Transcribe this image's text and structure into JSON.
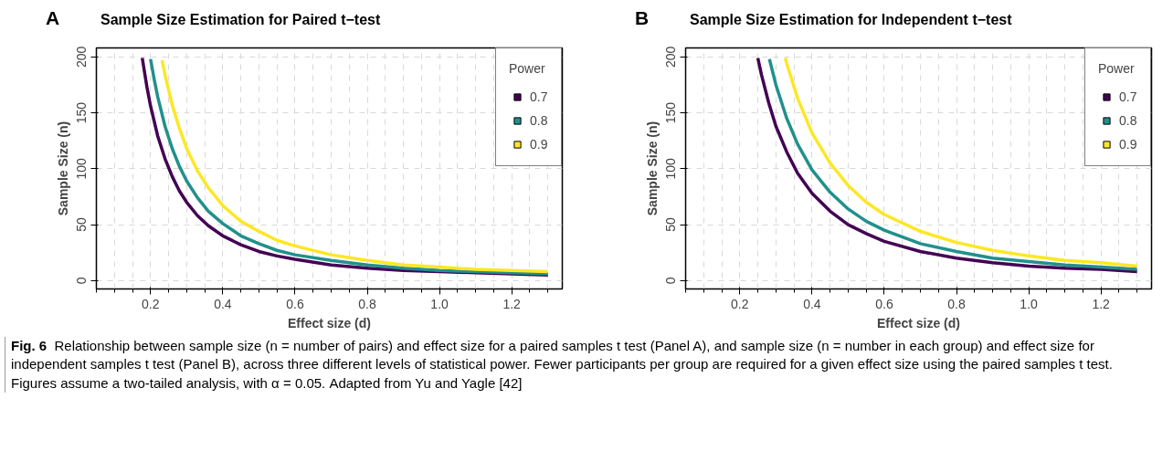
{
  "chart_data": [
    {
      "type": "line",
      "title": "Sample Size Estimation for Paired t−test",
      "xlabel": "Effect size (d)",
      "ylabel": "Sample Size (n)",
      "legend_title": "Power",
      "legend": "top right",
      "grid": true,
      "line_style": "solid",
      "marker": "none",
      "xlim": [
        0.05,
        1.34
      ],
      "ylim": [
        -7.5,
        208
      ],
      "xticks": [
        0.2,
        0.4,
        0.6,
        0.8,
        {
          "value": 1.0,
          "label": "1.0"
        },
        1.2
      ],
      "yticks": [
        0,
        50,
        100,
        150,
        200
      ],
      "annotations": [
        "A",
        "Fig. 6",
        "Relationship between sample size (n = number of pairs) and effect size for a paired samples t test (Panel A), and sample size (n = number in each group) and effect size for independent samples t test (Panel B), across three different levels of statistical power. Fewer participants per group are required for a given effect size using the paired samples t test. Figures assume a two-tailed analysis, with α = 0.05. Adapted from Yu and Yagle [42]"
      ],
      "series": [
        {
          "name": "0.7",
          "color": "#440154",
          "x": [
            0.177,
            0.19,
            0.2,
            0.22,
            0.24,
            0.26,
            0.28,
            0.3,
            0.33,
            0.36,
            0.4,
            0.45,
            0.5,
            0.55,
            0.6,
            0.7,
            0.8,
            0.9,
            1.0,
            1.1,
            1.2,
            1.3
          ],
          "values": [
            199,
            173,
            156,
            129,
            109,
            93,
            80,
            70,
            58,
            49,
            40,
            32,
            26,
            22,
            19,
            14,
            11,
            9,
            8,
            7,
            6,
            5
          ]
        },
        {
          "name": "0.8",
          "color": "#21908c",
          "x": [
            0.2,
            0.21,
            0.22,
            0.24,
            0.26,
            0.28,
            0.3,
            0.33,
            0.36,
            0.4,
            0.45,
            0.5,
            0.55,
            0.6,
            0.7,
            0.8,
            0.9,
            1.0,
            1.1,
            1.2,
            1.3
          ],
          "values": [
            198,
            180,
            164,
            138,
            118,
            102,
            89,
            74,
            62,
            51,
            40,
            33,
            27,
            23,
            18,
            14,
            11,
            9,
            8,
            7,
            6
          ]
        },
        {
          "name": "0.9",
          "color": "#fde725",
          "x": [
            0.232,
            0.24,
            0.26,
            0.28,
            0.3,
            0.33,
            0.36,
            0.4,
            0.45,
            0.5,
            0.55,
            0.6,
            0.7,
            0.8,
            0.9,
            1.0,
            1.1,
            1.2,
            1.3
          ],
          "values": [
            197,
            184,
            157,
            136,
            118,
            98,
            83,
            67,
            53,
            44,
            36,
            31,
            23,
            18,
            14,
            12,
            10,
            9,
            8
          ]
        }
      ]
    },
    {
      "type": "line",
      "title": "Sample Size Estimation for Independent t−test",
      "xlabel": "Effect size (d)",
      "ylabel": "Sample Size (n)",
      "legend_title": "Power",
      "legend": "top right",
      "grid": true,
      "line_style": "solid",
      "marker": "none",
      "xlim": [
        0.05,
        1.34
      ],
      "ylim": [
        -7.5,
        208
      ],
      "xticks": [
        0.2,
        0.4,
        0.6,
        0.8,
        {
          "value": 1.0,
          "label": "1.0"
        },
        1.2
      ],
      "yticks": [
        0,
        50,
        100,
        150,
        200
      ],
      "annotations": [
        "B"
      ],
      "series": [
        {
          "name": "0.7",
          "color": "#440154",
          "x": [
            0.25,
            0.26,
            0.28,
            0.3,
            0.33,
            0.36,
            0.4,
            0.45,
            0.5,
            0.55,
            0.6,
            0.7,
            0.8,
            0.9,
            1.0,
            1.1,
            1.2,
            1.3
          ],
          "values": [
            199,
            184,
            159,
            138,
            115,
            96,
            78,
            62,
            50,
            42,
            35,
            26,
            20,
            16,
            13,
            11,
            10,
            8
          ]
        },
        {
          "name": "0.8",
          "color": "#21908c",
          "x": [
            0.282,
            0.3,
            0.33,
            0.36,
            0.4,
            0.45,
            0.5,
            0.55,
            0.6,
            0.7,
            0.8,
            0.9,
            1.0,
            1.1,
            1.2,
            1.3
          ],
          "values": [
            198,
            175,
            145,
            122,
            99,
            79,
            64,
            53,
            45,
            33,
            26,
            20,
            17,
            14,
            12,
            10
          ]
        },
        {
          "name": "0.9",
          "color": "#fde725",
          "x": [
            0.326,
            0.33,
            0.36,
            0.4,
            0.45,
            0.5,
            0.55,
            0.6,
            0.7,
            0.8,
            0.9,
            1.0,
            1.1,
            1.2,
            1.3
          ],
          "values": [
            199,
            194,
            163,
            132,
            105,
            85,
            70,
            59,
            44,
            34,
            27,
            22,
            18,
            16,
            13
          ]
        }
      ]
    }
  ]
}
